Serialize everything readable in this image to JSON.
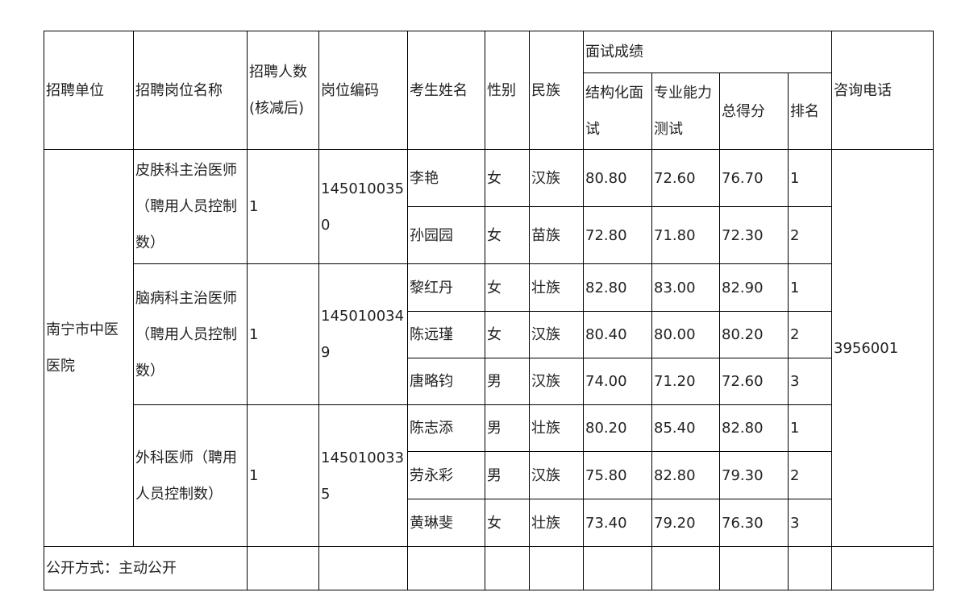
{
  "header": {
    "unit": "招聘单位",
    "post_name": "招聘岗位名称",
    "count": "招聘人数(核减后)",
    "post_code": "岗位编码",
    "name": "考生姓名",
    "gender": "性别",
    "ethnicity": "民族",
    "interview": "面试成绩",
    "structured": "结构化面试",
    "professional": "专业能力测试",
    "total": "总得分",
    "rank": "排名",
    "phone": "咨询电话"
  },
  "unit": "南宁市中医医院",
  "phone": "3956001",
  "groups": [
    {
      "post": "皮肤科主治医师（聘用人员控制数）",
      "count": "1",
      "code": "1450100350",
      "rows": [
        {
          "name": "李艳",
          "gender": "女",
          "ethnicity": "汉族",
          "structured": "80.80",
          "professional": "72.60",
          "total": "76.70",
          "rank": "1"
        },
        {
          "name": "孙园园",
          "gender": "女",
          "ethnicity": "苗族",
          "structured": "72.80",
          "professional": "71.80",
          "total": "72.30",
          "rank": "2"
        }
      ]
    },
    {
      "post": "脑病科主治医师（聘用人员控制数）",
      "count": "1",
      "code": "1450100349",
      "rows": [
        {
          "name": "黎红丹",
          "gender": "女",
          "ethnicity": "壮族",
          "structured": "82.80",
          "professional": "83.00",
          "total": "82.90",
          "rank": "1"
        },
        {
          "name": "陈远瑾",
          "gender": "女",
          "ethnicity": "汉族",
          "structured": "80.40",
          "professional": "80.00",
          "total": "80.20",
          "rank": "2"
        },
        {
          "name": "唐略钧",
          "gender": "男",
          "ethnicity": "汉族",
          "structured": "74.00",
          "professional": "71.20",
          "total": "72.60",
          "rank": "3"
        }
      ]
    },
    {
      "post": "外科医师（聘用人员控制数）",
      "count": "1",
      "code": "1450100335",
      "rows": [
        {
          "name": "陈志添",
          "gender": "男",
          "ethnicity": "壮族",
          "structured": "80.20",
          "professional": "85.40",
          "total": "82.80",
          "rank": "1"
        },
        {
          "name": "劳永彩",
          "gender": "男",
          "ethnicity": "汉族",
          "structured": "75.80",
          "professional": "82.80",
          "total": "79.30",
          "rank": "2"
        },
        {
          "name": "黄琳斐",
          "gender": "女",
          "ethnicity": "壮族",
          "structured": "73.40",
          "professional": "79.20",
          "total": "76.30",
          "rank": "3"
        }
      ]
    }
  ],
  "footer": "公开方式：主动公开"
}
